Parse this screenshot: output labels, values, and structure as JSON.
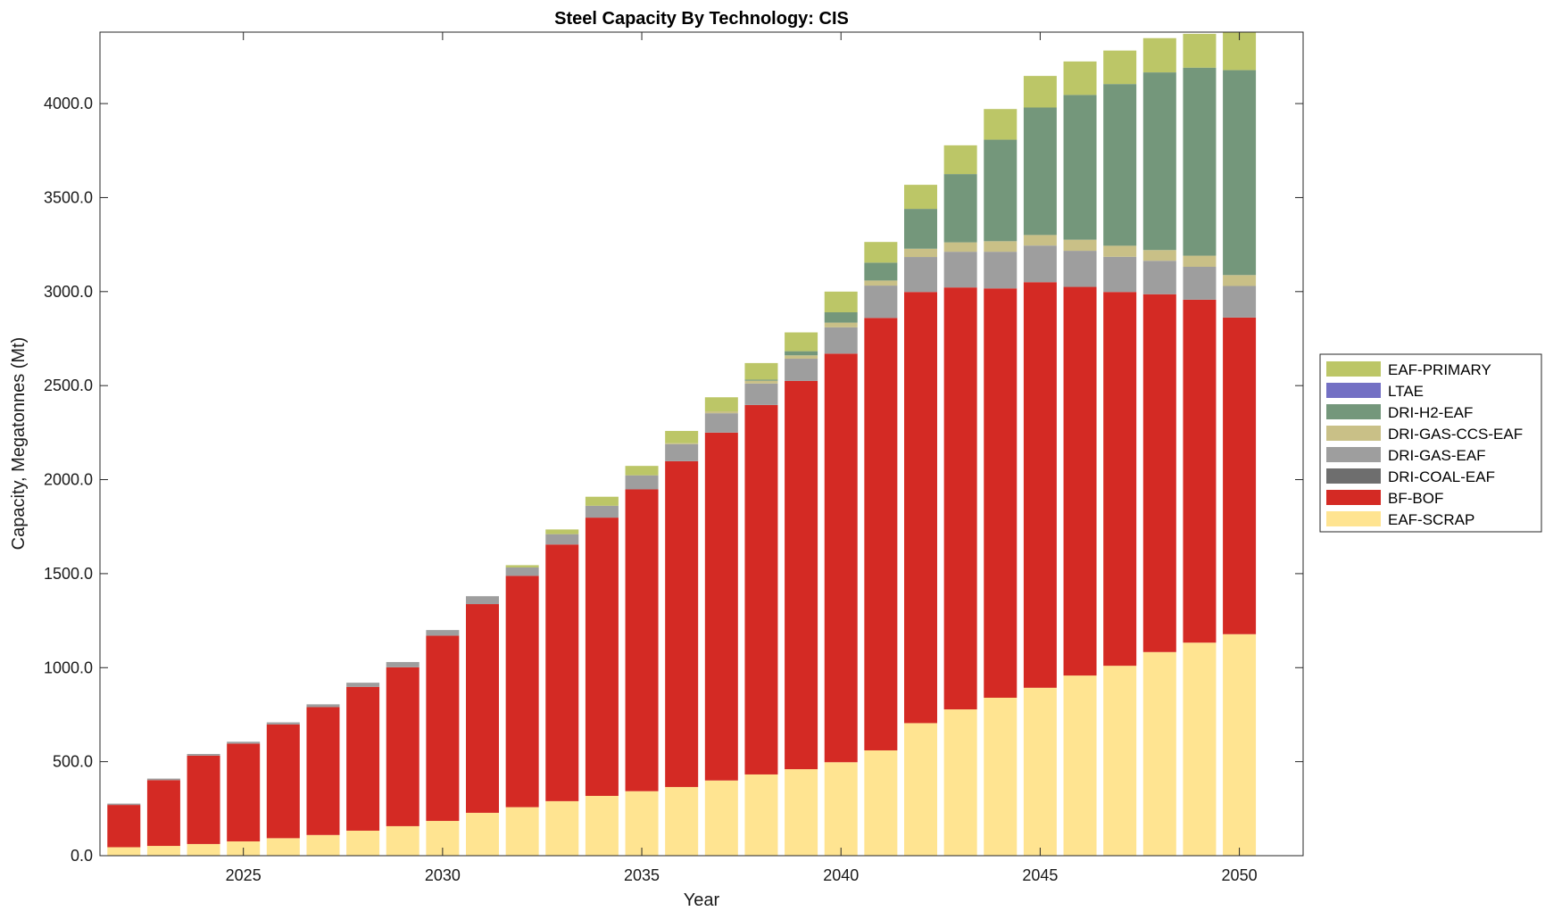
{
  "chart_data": {
    "type": "bar",
    "stacked": true,
    "title": "Steel Capacity By Technology: CIS",
    "xlabel": "Year",
    "ylabel": "Capacity, Megatonnes (Mt)",
    "ylim": [
      0,
      4380
    ],
    "xlim": [
      2021.4,
      2051.6
    ],
    "grid": false,
    "legend_position": "right",
    "x_ticks": [
      2025,
      2030,
      2035,
      2040,
      2045,
      2050
    ],
    "y_ticks": [
      0,
      500,
      1000,
      1500,
      2000,
      2500,
      3000,
      3500,
      4000
    ],
    "y_tick_labels": [
      "0.0",
      "500.0",
      "1000.0",
      "1500.0",
      "2000.0",
      "2500.0",
      "3000.0",
      "3500.0",
      "4000.0"
    ],
    "x": [
      2022,
      2023,
      2024,
      2025,
      2026,
      2027,
      2028,
      2029,
      2030,
      2031,
      2032,
      2033,
      2034,
      2035,
      2036,
      2037,
      2038,
      2039,
      2040,
      2041,
      2042,
      2043,
      2044,
      2045,
      2046,
      2047,
      2048,
      2049,
      2050
    ],
    "series": [
      {
        "name": "EAF-SCRAP",
        "color": "#FFE491",
        "values": [
          45,
          52,
          62,
          76,
          93,
          110,
          133,
          157,
          185,
          228,
          258,
          290,
          318,
          343,
          365,
          400,
          432,
          460,
          497,
          560,
          705,
          778,
          840,
          893,
          958,
          1010,
          1083,
          1133,
          1178
        ]
      },
      {
        "name": "BF-BOF",
        "color": "#D42A24",
        "values": [
          225,
          350,
          470,
          520,
          605,
          680,
          765,
          845,
          985,
          1110,
          1230,
          1365,
          1480,
          1605,
          1733,
          1850,
          1965,
          2065,
          2173,
          2300,
          2293,
          2244,
          2177,
          2157,
          2067,
          1988,
          1903,
          1824,
          1684
        ]
      },
      {
        "name": "DRI-COAL-EAF",
        "color": "#6E6E6E",
        "values": [
          0,
          0,
          0,
          0,
          0,
          0,
          0,
          0,
          0,
          0,
          0,
          0,
          0,
          0,
          0,
          0,
          0,
          0,
          0,
          0,
          0,
          0,
          0,
          0,
          0,
          0,
          0,
          0,
          0
        ]
      },
      {
        "name": "DRI-GAS-EAF",
        "color": "#9E9E9E",
        "values": [
          7,
          8,
          9,
          10,
          11,
          15,
          22,
          28,
          30,
          42,
          45,
          55,
          63,
          75,
          91,
          103,
          114,
          118,
          140,
          172,
          186,
          190,
          195,
          195,
          192,
          187,
          178,
          175,
          168
        ]
      },
      {
        "name": "DRI-GAS-CCS-EAF",
        "color": "#C9C087",
        "values": [
          0,
          0,
          0,
          0,
          0,
          0,
          0,
          0,
          0,
          0,
          0,
          0,
          0,
          0,
          5,
          10,
          15,
          18,
          25,
          27,
          44,
          50,
          56,
          56,
          59,
          59,
          57,
          59,
          58
        ]
      },
      {
        "name": "DRI-H2-EAF",
        "color": "#74977B",
        "values": [
          0,
          0,
          0,
          0,
          0,
          0,
          0,
          0,
          0,
          0,
          0,
          0,
          0,
          0,
          0,
          0,
          6,
          22,
          55,
          95,
          212,
          363,
          540,
          678,
          770,
          860,
          945,
          1000,
          1090
        ]
      },
      {
        "name": "LTAE",
        "color": "#7370C4",
        "values": [
          0,
          0,
          0,
          0,
          0,
          0,
          0,
          0,
          0,
          0,
          0,
          0,
          0,
          0,
          0,
          0,
          0,
          0,
          0,
          0,
          0,
          0,
          0,
          0,
          0,
          0,
          0,
          0,
          0
        ]
      },
      {
        "name": "EAF-PRIMARY",
        "color": "#BCC667",
        "values": [
          0,
          0,
          0,
          0,
          0,
          0,
          0,
          0,
          0,
          0,
          12,
          25,
          48,
          50,
          65,
          75,
          88,
          100,
          110,
          110,
          128,
          153,
          163,
          168,
          178,
          178,
          182,
          180,
          202
        ]
      }
    ],
    "legend_order": [
      "EAF-PRIMARY",
      "LTAE",
      "DRI-H2-EAF",
      "DRI-GAS-CCS-EAF",
      "DRI-GAS-EAF",
      "DRI-COAL-EAF",
      "BF-BOF",
      "EAF-SCRAP"
    ]
  }
}
